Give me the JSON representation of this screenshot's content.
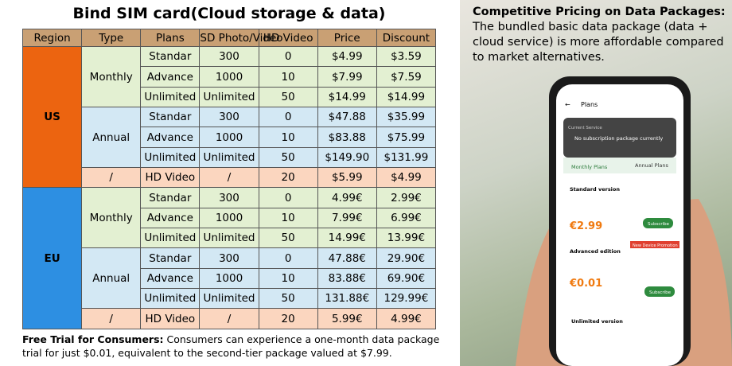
{
  "title": "Bind SIM card(Cloud storage & data)",
  "table": {
    "headers": [
      "Region",
      "Type",
      "Plans",
      "SD Photo/Video",
      "HD Video",
      "Price",
      "Discount"
    ],
    "regions": [
      {
        "name": "US",
        "groups": [
          {
            "type": "Monthly",
            "rows": [
              [
                "Standar",
                300,
                0,
                "$4.99",
                "$3.59"
              ],
              [
                "Advance",
                1000,
                10,
                "$7.99",
                "$7.59"
              ],
              [
                "Unlimited",
                "Unlimited",
                50,
                "$14.99",
                "$14.99"
              ]
            ]
          },
          {
            "type": "Annual",
            "rows": [
              [
                "Standar",
                300,
                0,
                "$47.88",
                "$35.99"
              ],
              [
                "Advance",
                1000,
                10,
                "$83.88",
                "$75.99"
              ],
              [
                "Unlimited",
                "Unlimited",
                50,
                "$149.90",
                "$131.99"
              ]
            ]
          },
          {
            "type": "/",
            "rows": [
              [
                "HD Video",
                "/",
                20,
                "$5.99",
                "$4.99"
              ]
            ]
          }
        ]
      },
      {
        "name": "EU",
        "groups": [
          {
            "type": "Monthly",
            "rows": [
              [
                "Standar",
                300,
                0,
                "4.99€",
                "2.99€"
              ],
              [
                "Advance",
                1000,
                10,
                "7.99€",
                "6.99€"
              ],
              [
                "Unlimited",
                "Unlimited",
                50,
                "14.99€",
                "13.99€"
              ]
            ]
          },
          {
            "type": "Annual",
            "rows": [
              [
                "Standar",
                300,
                0,
                "47.88€",
                "29.90€"
              ],
              [
                "Advance",
                1000,
                10,
                "83.88€",
                "69.90€"
              ],
              [
                "Unlimited",
                "Unlimited",
                50,
                "131.88€",
                "129.99€"
              ]
            ]
          },
          {
            "type": "/",
            "rows": [
              [
                "HD Video",
                "/",
                20,
                "5.99€",
                "4.99€"
              ]
            ]
          }
        ]
      }
    ]
  },
  "footnote": {
    "label": "Free Trial for Consumers:",
    "text": "Consumers can experience a one-month data package trial for just $0.01, equivalent to the second-tier package valued at $7.99."
  },
  "side": {
    "heading": "Competitive Pricing on Data Packages:",
    "body": "The bundled basic data package (data + cloud service) is more affordable compared to market alternatives."
  },
  "phone": {
    "title": "Plans",
    "current": "Current Service",
    "none": "No subscription package currently",
    "tabs": [
      "Monthly Plans",
      "Annual Plans"
    ],
    "plans": [
      {
        "name": "Standard version",
        "price": "€2.99",
        "button": "Subscribe"
      },
      {
        "name": "Advanced edition",
        "price": "€0.01",
        "button": "Subscribe",
        "badge": "New Device Promotion"
      },
      {
        "name": "Unlimited version"
      }
    ]
  }
}
